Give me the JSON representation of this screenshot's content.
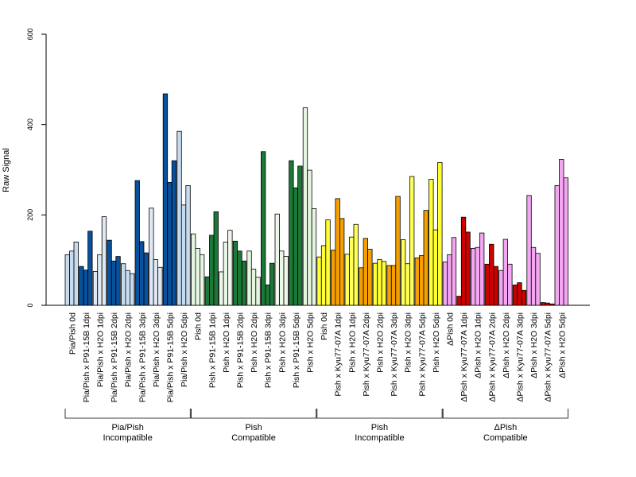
{
  "chart_data": {
    "type": "bar",
    "ylabel": "Raw Signal",
    "ylim": [
      0,
      600
    ],
    "yticks": [
      0,
      200,
      400,
      600
    ],
    "categories": [
      "Pia/Pish 0d",
      "Pia/Pish x P91-15B 1dpi",
      "Pia/Pish x H2O 1dpi",
      "Pia/Pish x P91-15B 2dpi",
      "Pia/Pish x H2O 2dpi",
      "Pia/Pish x P91-15B 3dpi",
      "Pia/Pish x H2O 3dpi",
      "Pia/Pish x P91-15B 5dpi",
      "Pia/Pish x H2O 5dpi",
      "Pish 0d",
      "Pish x P91-15B 1dpi",
      "Pish x H2O 1dpi",
      "Pish x P91-15B 2dpi",
      "Pish x H2O 2dpi",
      "Pish x P91-15B 3dpi",
      "Pish x H2O 3dpi",
      "Pish x P91-15B 5dpi",
      "Pish x H2O 5dpi",
      "Pish 0d",
      "Pish x Kyu77-07A 1dpi",
      "Pish x H2O 1dpi",
      "Pish x Kyu77-07A 2dpi",
      "Pish x H2O 2dpi",
      "Pish x Kyu77-07A 3dpi",
      "Pish x H2O 3dpi",
      "Pish x Kyu77-07A 5dpi",
      "Pish x H2O 5dpi",
      "ΔPish 0d",
      "ΔPish x Kyu77-07A 1dpi",
      "ΔPish x H2O 1dpi",
      "ΔPish x Kyu77-07A 2dpi",
      "ΔPish x H2O 2dpi",
      "ΔPish x Kyu77-07A 3dpi",
      "ΔPish x H2O 3dpi",
      "ΔPish x Kyu77-07A 5dpi",
      "ΔPish x H2O 5dpi"
    ],
    "values": [
      [
        112,
        120,
        140
      ],
      [
        86,
        78,
        164
      ],
      [
        75,
        112,
        196
      ],
      [
        144,
        98,
        108
      ],
      [
        92,
        77,
        70
      ],
      [
        276,
        141,
        116
      ],
      [
        215,
        101,
        84
      ],
      [
        468,
        272,
        320
      ],
      [
        385,
        222,
        265
      ],
      [
        158,
        126,
        112
      ],
      [
        63,
        155,
        207
      ],
      [
        74,
        140,
        166
      ],
      [
        142,
        120,
        98
      ],
      [
        120,
        80,
        62
      ],
      [
        340,
        45,
        93
      ],
      [
        202,
        120,
        108
      ],
      [
        320,
        260,
        308
      ],
      [
        437,
        299,
        214
      ],
      [
        107,
        132,
        189
      ],
      [
        122,
        236,
        192
      ],
      [
        113,
        151,
        179
      ],
      [
        83,
        148,
        124
      ],
      [
        93,
        101,
        97
      ],
      [
        88,
        88,
        241
      ],
      [
        145,
        92,
        285
      ],
      [
        105,
        110,
        210
      ],
      [
        279,
        167,
        316
      ],
      [
        96,
        112,
        150
      ],
      [
        20,
        195,
        162
      ],
      [
        126,
        128,
        160
      ],
      [
        91,
        135,
        86
      ],
      [
        77,
        146,
        91
      ],
      [
        45,
        50,
        33
      ],
      [
        243,
        128,
        115
      ],
      [
        6,
        5,
        3
      ],
      [
        265,
        323,
        282
      ]
    ],
    "bar_colors": [
      "#c6dbef",
      "#08519c",
      "#dfe9f5",
      "#08519c",
      "#c6dbef",
      "#08519c",
      "#dfe9f5",
      "#08519c",
      "#c6dbef",
      "#e5f5e0",
      "#1b7837",
      "#eef8ea",
      "#1b7837",
      "#e5f5e0",
      "#1b7837",
      "#eef8ea",
      "#1b7837",
      "#e5f5e0",
      "#ffff33",
      "#f5a000",
      "#ffff55",
      "#f5a000",
      "#ffff33",
      "#f5a000",
      "#ffff55",
      "#f5a000",
      "#ffff33",
      "#f4a6f2",
      "#cc0000",
      "#f4a6f2",
      "#cc0000",
      "#f4a6f2",
      "#cc0000",
      "#f4a6f2",
      "#cc0000",
      "#f4a6f2"
    ],
    "groups": [
      {
        "line1": "Pia/Pish",
        "line2": "Incompatible",
        "start": 0,
        "end": 8
      },
      {
        "line1": "Pish",
        "line2": "Compatible",
        "start": 9,
        "end": 17
      },
      {
        "line1": "Pish",
        "line2": "Incompatible",
        "start": 18,
        "end": 26
      },
      {
        "line1": "ΔPish",
        "line2": "Compatible",
        "start": 27,
        "end": 35
      }
    ],
    "grid": false,
    "legend": "none"
  }
}
